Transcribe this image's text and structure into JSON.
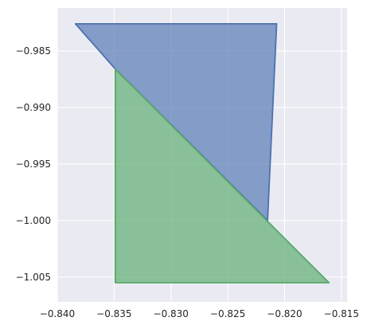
{
  "chart_data": {
    "type": "area",
    "title": "",
    "xlabel": "",
    "ylabel": "",
    "xlim": [
      -0.84,
      -0.8145
    ],
    "ylim": [
      -1.0072,
      -0.9812
    ],
    "grid": true,
    "x_ticks": [
      -0.84,
      -0.835,
      -0.83,
      -0.825,
      -0.82,
      -0.815
    ],
    "x_tick_labels": [
      "−0.840",
      "−0.835",
      "−0.830",
      "−0.825",
      "−0.820",
      "−0.815"
    ],
    "y_ticks": [
      -0.985,
      -0.99,
      -0.995,
      -1.0,
      -1.005
    ],
    "y_tick_labels": [
      "−0.985",
      "−0.990",
      "−0.995",
      "−1.000",
      "−1.005"
    ],
    "series": [
      {
        "shape": "polygon",
        "fill": "#4c72b0",
        "fill_opacity": 0.65,
        "stroke": "#4c72b0",
        "points": [
          [
            -0.8384,
            -0.9826
          ],
          [
            -0.8207,
            -0.9826
          ],
          [
            -0.8215,
            -1.0
          ],
          [
            -0.8349,
            -0.9866
          ]
        ]
      },
      {
        "shape": "polygon",
        "fill": "#55a868",
        "fill_opacity": 0.65,
        "stroke": "#55a868",
        "points": [
          [
            -0.8349,
            -0.9866
          ],
          [
            -0.8349,
            -1.0055
          ],
          [
            -0.8161,
            -1.0055
          ]
        ]
      }
    ]
  }
}
